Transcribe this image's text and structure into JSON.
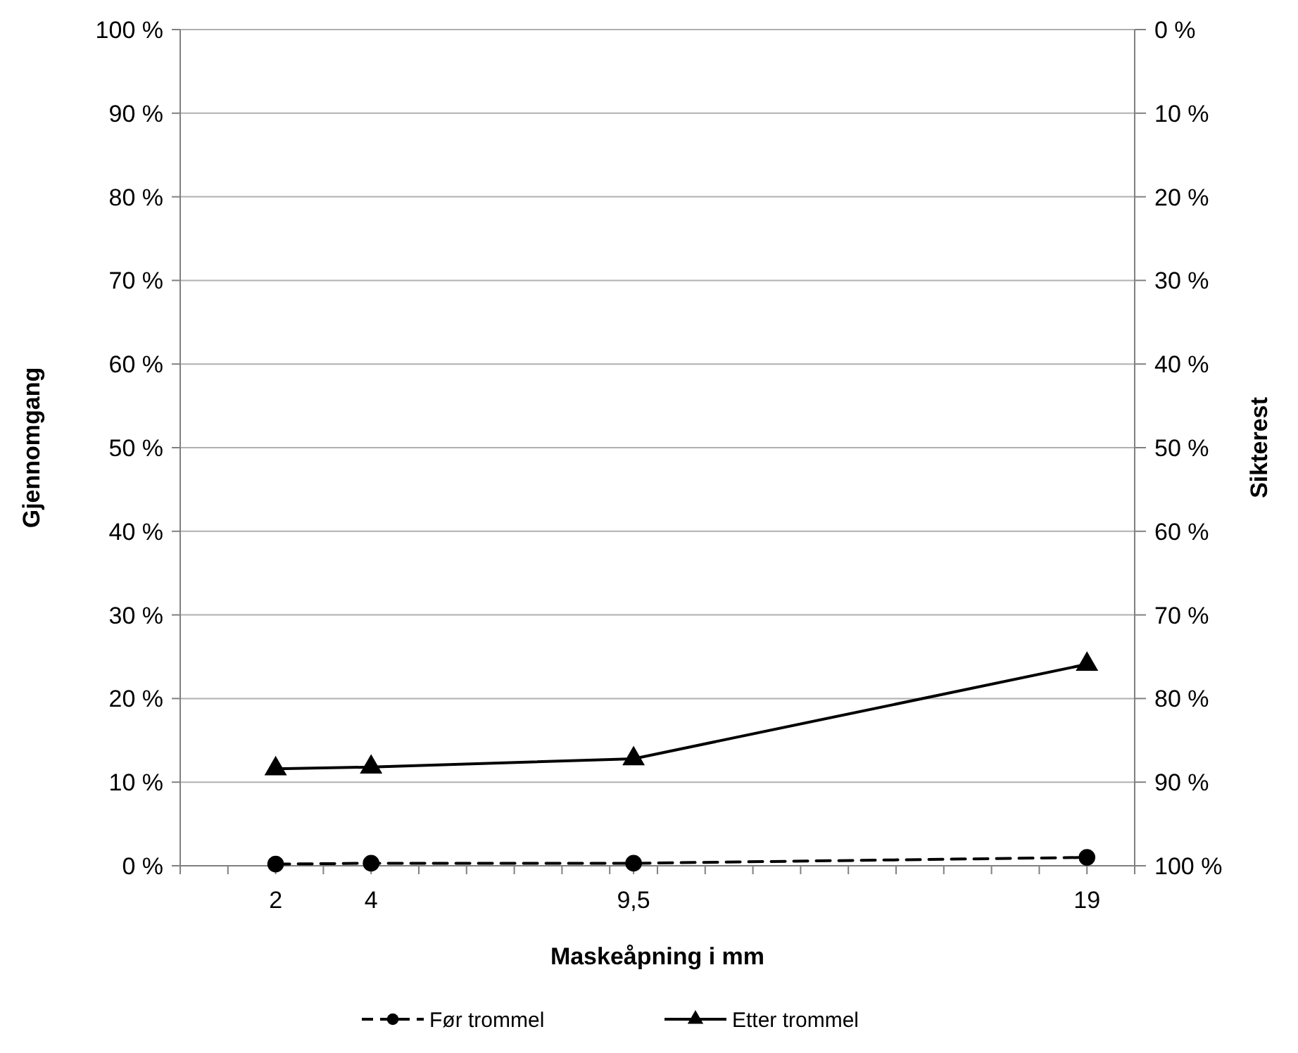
{
  "chart_data": {
    "type": "line",
    "xlabel": "Maskeåpning i mm",
    "ylabel": "Gjennomgang",
    "y2label": "Sikterest",
    "x": [
      2,
      4,
      9.5,
      19
    ],
    "series": [
      {
        "name": "Før trommel",
        "color": "#000000",
        "values": [
          0.2,
          0.3,
          0.3,
          1.0
        ],
        "marker": "circle",
        "line_style": "dashed"
      },
      {
        "name": "Etter trommel",
        "color": "#000000",
        "values": [
          11.6,
          11.8,
          12.8,
          24.1
        ],
        "marker": "triangle",
        "line_style": "solid"
      }
    ],
    "xlim": [
      0,
      20
    ],
    "xticks": [
      {
        "value": 0,
        "label": null
      },
      {
        "value": 1,
        "label": null
      },
      2,
      {
        "value": 3,
        "label": null
      },
      4,
      {
        "value": 5,
        "label": null
      },
      {
        "value": 6,
        "label": null
      },
      {
        "value": 7,
        "label": null
      },
      {
        "value": 8,
        "label": null
      },
      {
        "value": 9,
        "label": null
      },
      {
        "value": 9.5,
        "label": "9,5"
      },
      {
        "value": 10,
        "label": null
      },
      {
        "value": 11,
        "label": null
      },
      {
        "value": 12,
        "label": null
      },
      {
        "value": 13,
        "label": null
      },
      {
        "value": 14,
        "label": null
      },
      {
        "value": 15,
        "label": null
      },
      {
        "value": 16,
        "label": null
      },
      {
        "value": 17,
        "label": null
      },
      {
        "value": 18,
        "label": null
      },
      19,
      {
        "value": 20,
        "label": null
      }
    ],
    "ylim": [
      0,
      100
    ],
    "yticks": [
      {
        "value": 0,
        "label": "0 %"
      },
      {
        "value": 10,
        "label": "10 %"
      },
      {
        "value": 20,
        "label": "20 %"
      },
      {
        "value": 30,
        "label": "30 %"
      },
      {
        "value": 40,
        "label": "40 %"
      },
      {
        "value": 50,
        "label": "50 %"
      },
      {
        "value": 60,
        "label": "60 %"
      },
      {
        "value": 70,
        "label": "70 %"
      },
      {
        "value": 80,
        "label": "80 %"
      },
      {
        "value": 90,
        "label": "90 %"
      },
      {
        "value": 100,
        "label": "100 %"
      }
    ],
    "y2lim": [
      100,
      0
    ],
    "y2ticks": [
      {
        "value": 100,
        "label": "100 %"
      },
      {
        "value": 90,
        "label": "90 %"
      },
      {
        "value": 80,
        "label": "80 %"
      },
      {
        "value": 70,
        "label": "70 %"
      },
      {
        "value": 60,
        "label": "60 %"
      },
      {
        "value": 50,
        "label": "50 %"
      },
      {
        "value": 40,
        "label": "40 %"
      },
      {
        "value": 30,
        "label": "30 %"
      },
      {
        "value": 20,
        "label": "20 %"
      },
      {
        "value": 10,
        "label": "10 %"
      },
      {
        "value": 0,
        "label": "0 %"
      }
    ],
    "grid": "y",
    "legend": "bottom"
  }
}
